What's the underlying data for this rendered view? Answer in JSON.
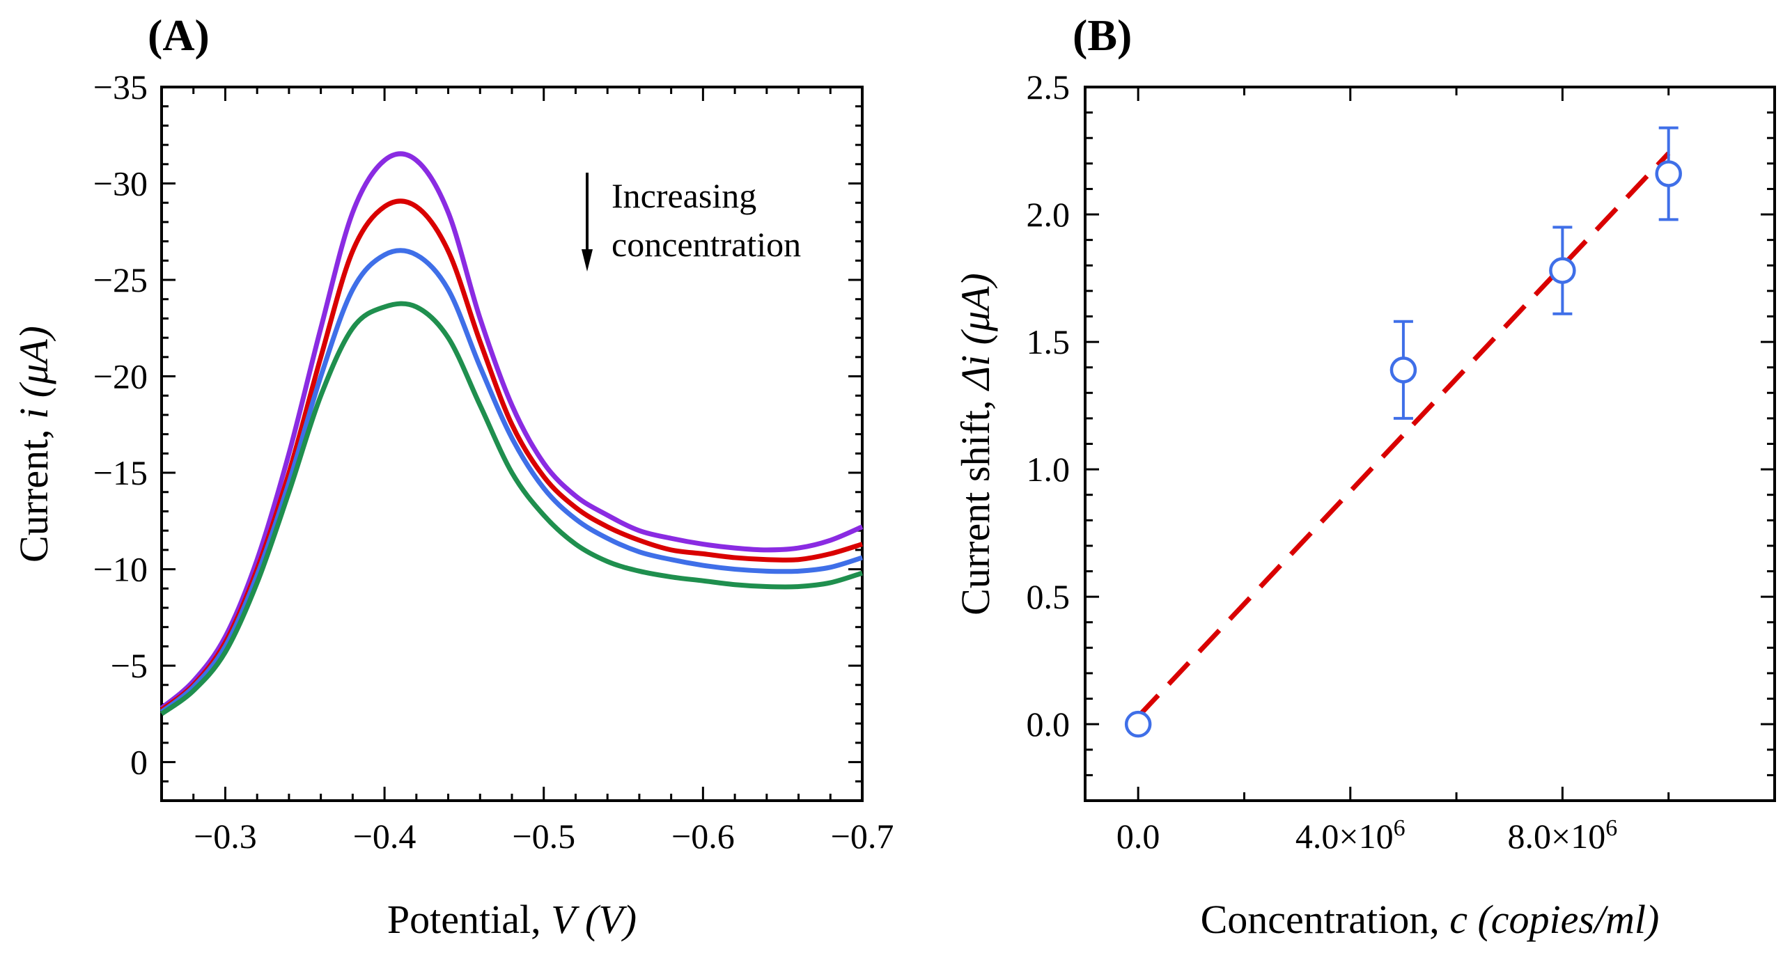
{
  "chart_data": [
    {
      "type": "line",
      "panel_label": "(A)",
      "xlabel_prefix": "Potential, ",
      "xlabel_italic": "V (V)",
      "ylabel_prefix": "Current, ",
      "ylabel_italic": "i (μA)",
      "xlim": [
        -0.26,
        -0.7
      ],
      "ylim": [
        2,
        -35
      ],
      "x_ticks": [
        -0.3,
        -0.4,
        -0.5,
        -0.6,
        -0.7
      ],
      "x_tick_labels": [
        "−0.3",
        "−0.4",
        "−0.5",
        "−0.6",
        "−0.7"
      ],
      "y_ticks": [
        0,
        -5,
        -10,
        -15,
        -20,
        -25,
        -30,
        -35
      ],
      "y_tick_labels": [
        "0",
        "−5",
        "−10",
        "−15",
        "−20",
        "−25",
        "−30",
        "−35"
      ],
      "annotation_line1": "Increasing",
      "annotation_line2": "concentration",
      "x": [
        -0.26,
        -0.28,
        -0.3,
        -0.32,
        -0.34,
        -0.36,
        -0.38,
        -0.4,
        -0.42,
        -0.44,
        -0.46,
        -0.48,
        -0.5,
        -0.52,
        -0.54,
        -0.56,
        -0.58,
        -0.6,
        -0.62,
        -0.64,
        -0.66,
        -0.68,
        -0.7
      ],
      "series": [
        {
          "name": "purple",
          "color": "#8a2be2",
          "values": [
            -2.8,
            -4.2,
            -6.5,
            -10.5,
            -16.0,
            -22.5,
            -28.5,
            -31.2,
            -31.2,
            -28.5,
            -23.0,
            -18.5,
            -15.5,
            -13.8,
            -12.8,
            -12.0,
            -11.6,
            -11.3,
            -11.1,
            -11.0,
            -11.1,
            -11.5,
            -12.2
          ]
        },
        {
          "name": "red",
          "color": "#d90000",
          "values": [
            -2.7,
            -4.0,
            -6.2,
            -10.0,
            -15.0,
            -21.0,
            -26.5,
            -28.8,
            -28.8,
            -26.5,
            -21.8,
            -17.5,
            -14.8,
            -13.2,
            -12.2,
            -11.5,
            -11.0,
            -10.8,
            -10.6,
            -10.5,
            -10.5,
            -10.8,
            -11.3
          ]
        },
        {
          "name": "blue",
          "color": "#3f6fe8",
          "values": [
            -2.6,
            -3.9,
            -6.0,
            -9.7,
            -14.5,
            -20.0,
            -24.5,
            -26.3,
            -26.3,
            -24.5,
            -20.5,
            -16.8,
            -14.2,
            -12.6,
            -11.6,
            -10.9,
            -10.5,
            -10.2,
            -10.0,
            -9.9,
            -9.9,
            -10.1,
            -10.6
          ]
        },
        {
          "name": "green",
          "color": "#1f8f4e",
          "values": [
            -2.5,
            -3.7,
            -5.7,
            -9.3,
            -14.0,
            -19.0,
            -22.5,
            -23.6,
            -23.6,
            -22.0,
            -18.5,
            -15.0,
            -12.8,
            -11.3,
            -10.4,
            -9.9,
            -9.6,
            -9.4,
            -9.2,
            -9.1,
            -9.1,
            -9.3,
            -9.8
          ]
        }
      ]
    },
    {
      "type": "scatter",
      "panel_label": "(B)",
      "xlabel_prefix": "Concentration, ",
      "xlabel_italic": "c (copies/ml)",
      "ylabel_prefix": "Current shift, ",
      "ylabel_italic": "Δi (μA)",
      "xlim": [
        -1000000,
        12000000
      ],
      "ylim": [
        -0.3,
        2.5
      ],
      "x_ticks": [
        0,
        4000000,
        8000000
      ],
      "x_tick_mantissa": [
        "0.0",
        "4.0",
        "8.0"
      ],
      "x_tick_has_exp": [
        false,
        true,
        true
      ],
      "x_tick_times": "×10",
      "x_tick_exp": "6",
      "x_minor_ticks": [
        2000000,
        6000000,
        10000000
      ],
      "y_ticks": [
        0.0,
        0.5,
        1.0,
        1.5,
        2.0,
        2.5
      ],
      "y_tick_labels": [
        "0.0",
        "0.5",
        "1.0",
        "1.5",
        "2.0",
        "2.5"
      ],
      "points": {
        "color": "#3f6fe8",
        "x": [
          0,
          5000000,
          8000000,
          10000000
        ],
        "y": [
          0.0,
          1.39,
          1.78,
          2.16
        ],
        "err": [
          0.0,
          0.19,
          0.17,
          0.18
        ]
      },
      "fit_line": {
        "color": "#d90000",
        "x": [
          0,
          10000000
        ],
        "y": [
          0.03,
          2.24
        ]
      }
    }
  ]
}
